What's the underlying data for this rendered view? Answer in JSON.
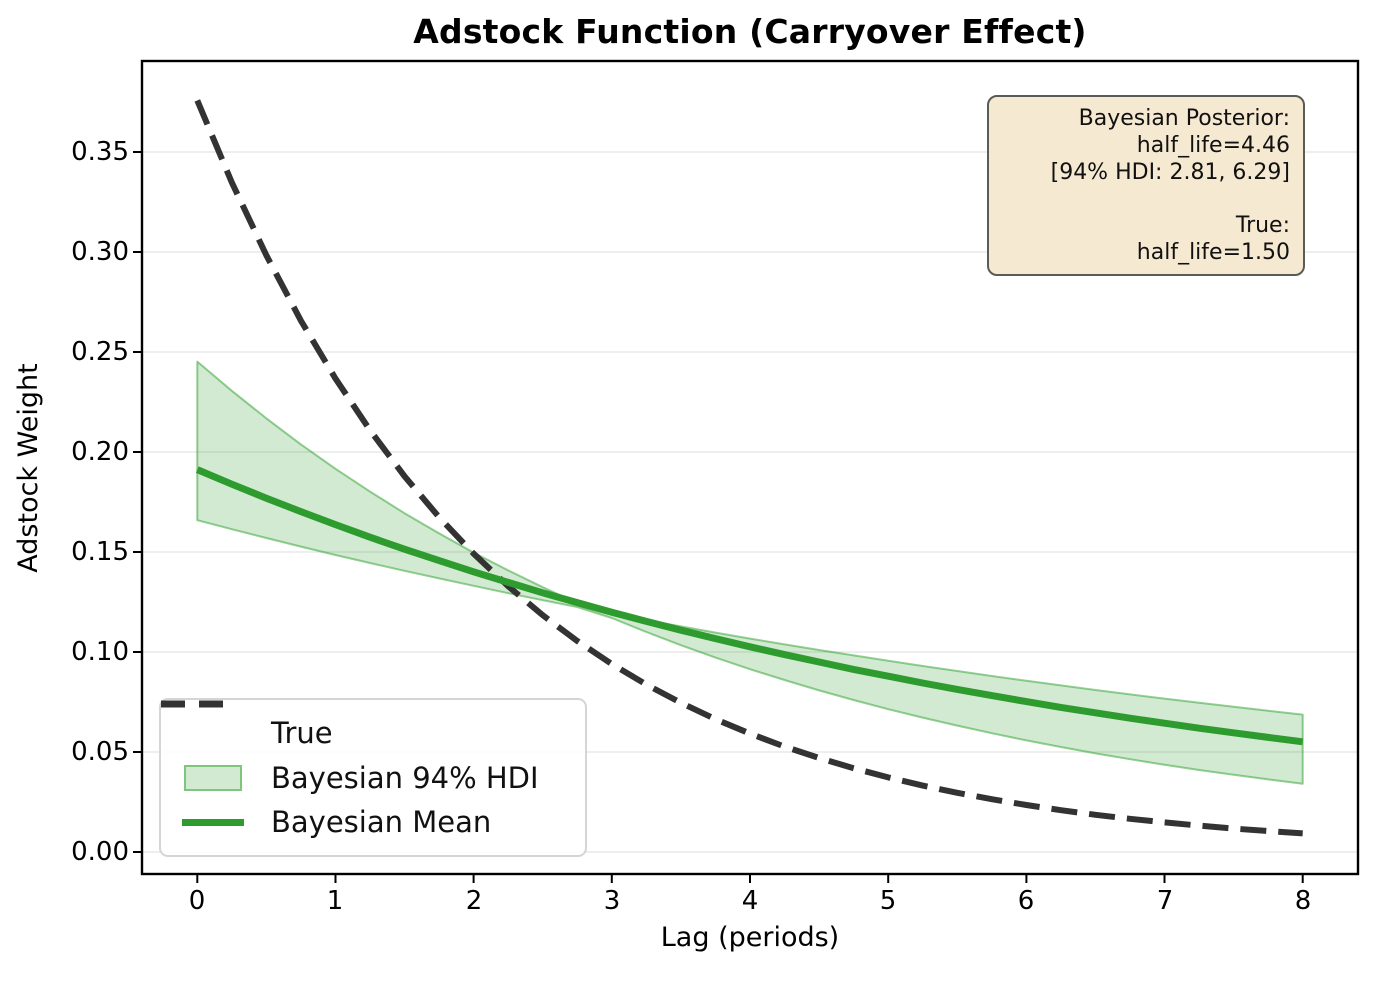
{
  "title": "Adstock Function (Carryover Effect)",
  "axes": {
    "xlabel": "Lag (periods)",
    "ylabel": "Adstock Weight",
    "xlim": [
      -0.4,
      8.4
    ],
    "ylim": [
      -0.011,
      0.3955
    ],
    "xticks": {
      "values": [
        0,
        1,
        2,
        3,
        4,
        5,
        6,
        7,
        8
      ],
      "labels": [
        "0",
        "1",
        "2",
        "3",
        "4",
        "5",
        "6",
        "7",
        "8"
      ]
    },
    "yticks": {
      "values": [
        0.0,
        0.05,
        0.1,
        0.15,
        0.2,
        0.25,
        0.3,
        0.35
      ],
      "labels": [
        "0.00",
        "0.05",
        "0.10",
        "0.15",
        "0.20",
        "0.25",
        "0.30",
        "0.35"
      ]
    },
    "grid": "horizontal-only"
  },
  "legend": {
    "position": "lower-left",
    "items": [
      {
        "label": "True",
        "swatch": "dashed-line-swatch"
      },
      {
        "label": "Bayesian 94% HDI",
        "swatch": "patch-swatch"
      },
      {
        "label": "Bayesian Mean",
        "swatch": "solid-line-swatch"
      }
    ]
  },
  "annotation": {
    "lines": [
      "Bayesian Posterior:",
      "half_life=4.46",
      "[94% HDI: 2.81, 6.29]",
      "",
      "True:",
      "half_life=1.50"
    ]
  },
  "colors": {
    "true_line": "#333333",
    "mean_line": "#2e9b2e",
    "hdi_color": "#2ca02c",
    "hdi_fill_alpha": 0.22,
    "hdi_edge_alpha": 0.5,
    "grid": "#e8e8e8",
    "spine": "#000000",
    "annotation_bg": "#f6e9d1",
    "annotation_border": "#5a5a56",
    "legend_border": "#d5d5d5"
  },
  "chart_data": {
    "type": "line",
    "title": "Adstock Function (Carryover Effect)",
    "xlabel": "Lag (periods)",
    "ylabel": "Adstock Weight",
    "xlim": [
      -0.4,
      8.4
    ],
    "ylim": [
      -0.011,
      0.3955
    ],
    "legend_position": "lower left",
    "params": {
      "posterior_half_life": 4.46,
      "hdi_94": [
        2.81,
        6.29
      ],
      "true_half_life": 1.5
    },
    "x": [
      0,
      0.25,
      0.5,
      0.75,
      1,
      1.25,
      1.5,
      1.75,
      2,
      2.25,
      2.5,
      2.75,
      3,
      3.25,
      3.5,
      3.75,
      4,
      4.25,
      4.5,
      4.75,
      5,
      5.25,
      5.5,
      5.75,
      6,
      6.25,
      6.5,
      6.75,
      7,
      7.25,
      7.5,
      7.75,
      8
    ],
    "series": [
      {
        "name": "True",
        "style": "dashed",
        "values": [
          0.3758,
          0.3348,
          0.2983,
          0.2657,
          0.2367,
          0.2109,
          0.1879,
          0.1674,
          0.1492,
          0.1329,
          0.1184,
          0.1055,
          0.094,
          0.0837,
          0.0746,
          0.0664,
          0.0592,
          0.0527,
          0.047,
          0.0419,
          0.0373,
          0.0332,
          0.0296,
          0.0264,
          0.0235,
          0.0209,
          0.0186,
          0.0166,
          0.0148,
          0.0132,
          0.0117,
          0.0105,
          0.0093
        ]
      },
      {
        "name": "Bayesian Mean",
        "style": "solid",
        "values": [
          0.1912,
          0.1839,
          0.1769,
          0.1702,
          0.1637,
          0.1574,
          0.1514,
          0.1457,
          0.1401,
          0.1348,
          0.1296,
          0.1247,
          0.1199,
          0.1153,
          0.1109,
          0.1067,
          0.1026,
          0.0987,
          0.095,
          0.0913,
          0.0879,
          0.0845,
          0.0813,
          0.0782,
          0.0752,
          0.0723,
          0.0696,
          0.0669,
          0.0644,
          0.0619,
          0.0596,
          0.0573,
          0.0551
        ]
      },
      {
        "name": "Bayesian 94% HDI",
        "style": "band",
        "upper": [
          0.2452,
          0.2306,
          0.2168,
          0.2038,
          0.1916,
          0.1802,
          0.1694,
          0.1593,
          0.1497,
          0.1408,
          0.1324,
          0.1244,
          0.1192,
          0.1159,
          0.1128,
          0.1097,
          0.1067,
          0.1038,
          0.101,
          0.0983,
          0.0956,
          0.093,
          0.0905,
          0.088,
          0.0856,
          0.0833,
          0.081,
          0.0788,
          0.0767,
          0.0746,
          0.0726,
          0.0706,
          0.0687
        ],
        "lower": [
          0.1659,
          0.1614,
          0.157,
          0.1527,
          0.1485,
          0.1445,
          0.1406,
          0.1368,
          0.1331,
          0.1294,
          0.1259,
          0.1225,
          0.117,
          0.11,
          0.1034,
          0.0972,
          0.0914,
          0.086,
          0.0808,
          0.076,
          0.0714,
          0.0672,
          0.0632,
          0.0594,
          0.0558,
          0.0525,
          0.0493,
          0.0464,
          0.0436,
          0.041,
          0.0386,
          0.0363,
          0.0341
        ]
      }
    ]
  }
}
